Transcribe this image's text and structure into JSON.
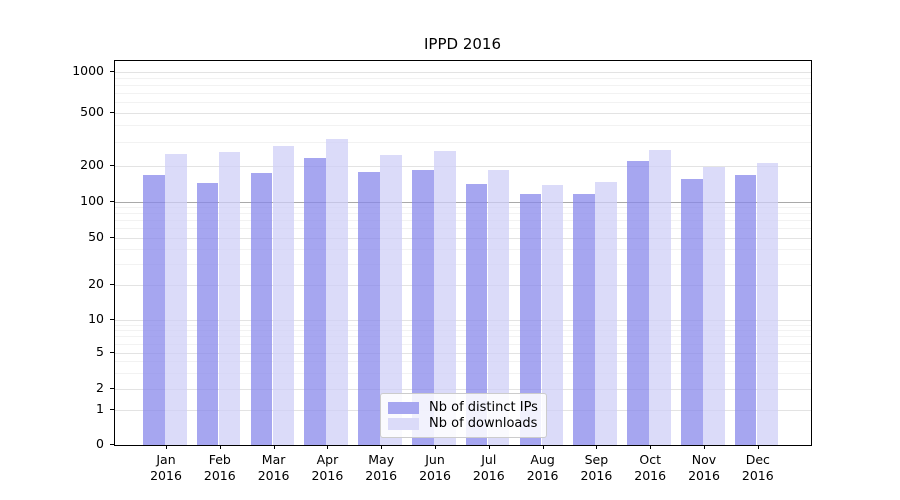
{
  "chart_data": {
    "type": "bar",
    "title": "IPPD 2016",
    "xlabel": "",
    "ylabel": "",
    "y_scale": "symlog",
    "ylim": [
      0,
      1200
    ],
    "y_ticks": [
      0,
      1,
      2,
      5,
      10,
      20,
      50,
      100,
      200,
      500,
      1000
    ],
    "y_minor_ticks": [
      3,
      4,
      6,
      7,
      8,
      9,
      30,
      40,
      60,
      70,
      80,
      90,
      300,
      400,
      600,
      700,
      800,
      900
    ],
    "grid": "on",
    "legend_position": "lower center",
    "categories": [
      {
        "month": "Jan",
        "year": "2016"
      },
      {
        "month": "Feb",
        "year": "2016"
      },
      {
        "month": "Mar",
        "year": "2016"
      },
      {
        "month": "Apr",
        "year": "2016"
      },
      {
        "month": "May",
        "year": "2016"
      },
      {
        "month": "Jun",
        "year": "2016"
      },
      {
        "month": "Jul",
        "year": "2016"
      },
      {
        "month": "Aug",
        "year": "2016"
      },
      {
        "month": "Sep",
        "year": "2016"
      },
      {
        "month": "Oct",
        "year": "2016"
      },
      {
        "month": "Nov",
        "year": "2016"
      },
      {
        "month": "Dec",
        "year": "2016"
      }
    ],
    "series": [
      {
        "name": "Nb of distinct IPs",
        "color": "#a6a6f0",
        "values": [
          167,
          143,
          176,
          230,
          178,
          185,
          142,
          116,
          117,
          218,
          155,
          167
        ]
      },
      {
        "name": "Nb of downloads",
        "color": "#dbdbf9",
        "values": [
          247,
          256,
          283,
          318,
          242,
          259,
          184,
          138,
          146,
          262,
          196,
          209
        ]
      }
    ]
  },
  "axes_style": {
    "major_grid_color": "#e3e3e3",
    "minor_grid_color": "#f2f2f2",
    "hundred_grid_color": "#a9a9a9"
  }
}
